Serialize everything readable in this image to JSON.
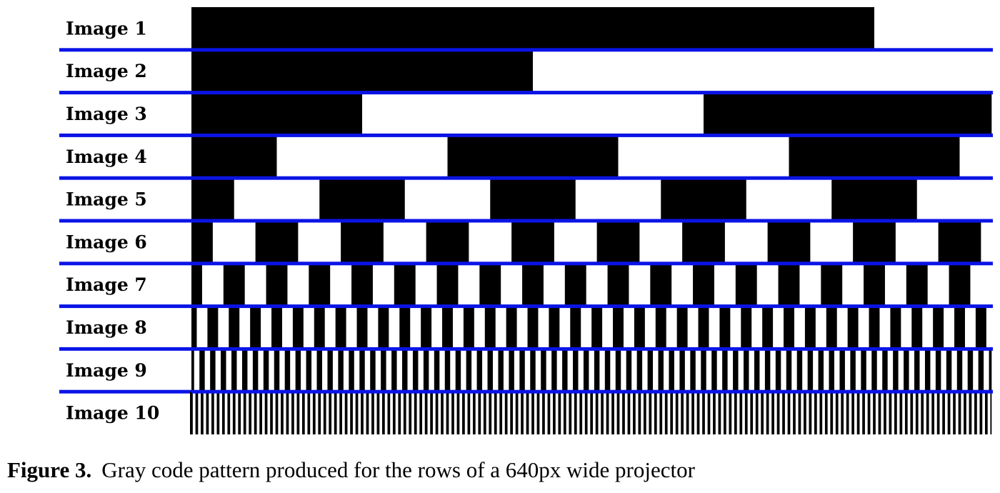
{
  "rows": [
    "Image 1",
    "Image 2",
    "Image 3",
    "Image 4",
    "Image 5",
    "Image 6",
    "Image 7",
    "Image 8",
    "Image 9",
    "Image 10"
  ],
  "caption": {
    "label": "Figure 3.",
    "text": "Gray code pattern produced for the rows of a 640px wide projector"
  }
}
